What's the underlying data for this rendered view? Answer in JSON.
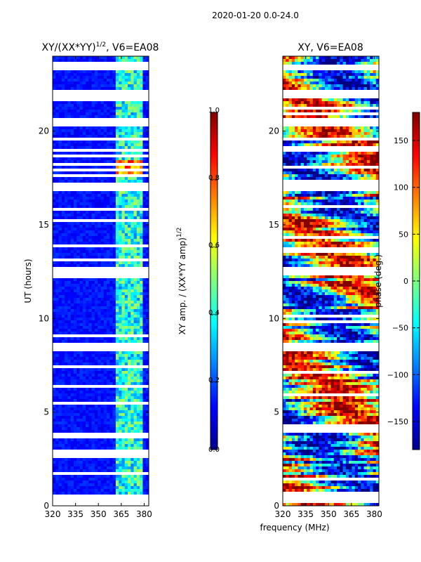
{
  "suptitle": "2020-01-20 0.0-24.0",
  "shared_xlabel": "frequency (MHz)",
  "chart_data": [
    {
      "type": "heatmap",
      "title": "XY/(XX*YY)",
      "title_sup": "1/2",
      "title_suffix": ", V6=EA08",
      "xlabel": "",
      "ylabel": "UT (hours)",
      "xlim": [
        320,
        383
      ],
      "ylim": [
        0,
        24
      ],
      "x_ticks": [
        320,
        335,
        350,
        365,
        380
      ],
      "y_ticks": [
        0,
        5,
        10,
        15,
        20
      ],
      "colorbar": {
        "label": "XY amp. / (XX*YY amp)",
        "label_sup": "1/2",
        "range": [
          0.0,
          1.0
        ],
        "ticks": [
          "0.0",
          "0.2",
          "0.4",
          "0.6",
          "0.8",
          "1.0"
        ],
        "tick_values": [
          0.0,
          0.2,
          0.4,
          0.6,
          0.8,
          1.0
        ]
      },
      "bright_channel_band_mhz": [
        362,
        380
      ],
      "high_amp_hours": [
        17.5,
        18.5
      ],
      "flagged_hours": [
        0.4,
        8.5,
        12.5,
        17,
        20.5,
        22,
        23.4
      ]
    },
    {
      "type": "heatmap",
      "title": "XY, V6=EA08",
      "xlabel": "frequency (MHz)",
      "ylabel": "",
      "xlim": [
        320,
        383
      ],
      "ylim": [
        0,
        24
      ],
      "x_ticks": [
        320,
        335,
        350,
        365,
        380
      ],
      "y_ticks": [
        0,
        5,
        10,
        15,
        20
      ],
      "colorbar": {
        "label": "phase (deg.)",
        "range": [
          -180,
          180
        ],
        "ticks": [
          "−150",
          "−100",
          "−50",
          "0",
          "50",
          "100",
          "150"
        ],
        "tick_values": [
          -150,
          -100,
          -50,
          0,
          50,
          100,
          150
        ]
      },
      "flagged_hours": [
        0.4,
        8.5,
        12.5,
        17,
        20.5,
        22,
        23.4
      ]
    }
  ]
}
